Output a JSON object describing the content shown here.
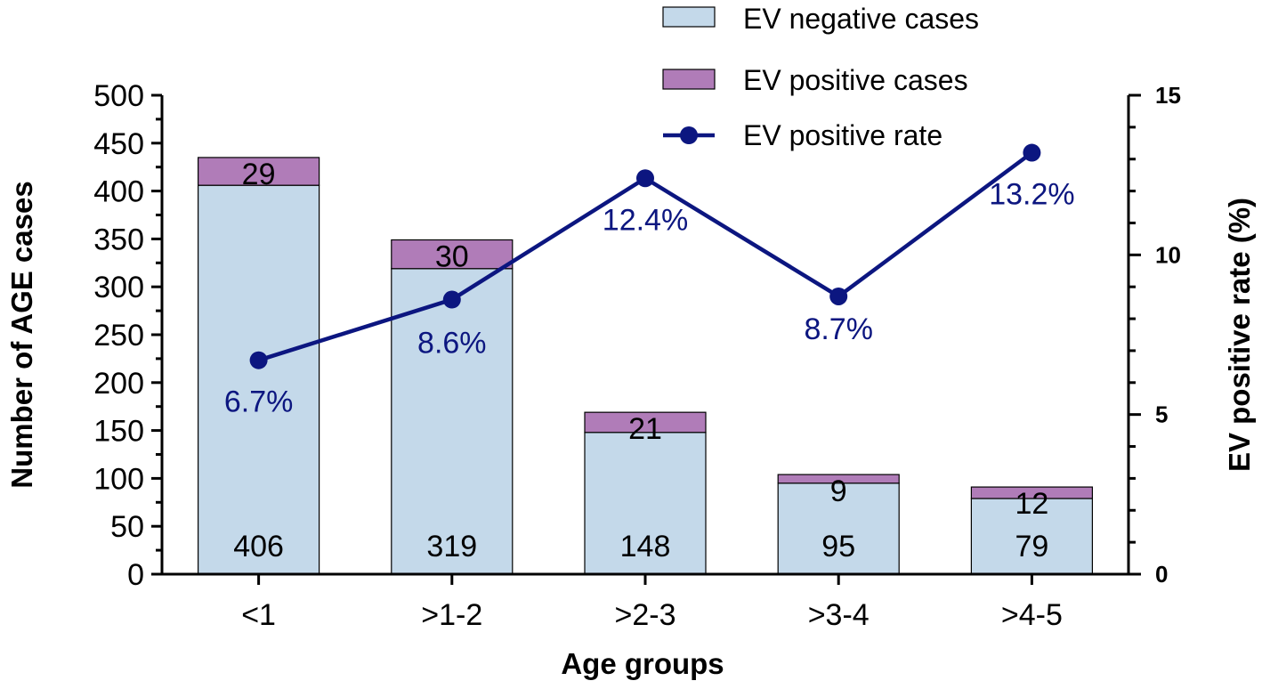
{
  "colors": {
    "negative_fill": "#c4d9ea",
    "positive_fill": "#b07cb8",
    "rate_line": "#0c1680",
    "axis": "#000000"
  },
  "chart_data": {
    "type": "bar",
    "stacked": true,
    "categories": [
      "<1",
      ">1-2",
      ">2-3",
      ">3-4",
      ">4-5"
    ],
    "series": [
      {
        "name": "EV negative cases",
        "values": [
          406,
          319,
          148,
          95,
          79
        ]
      },
      {
        "name": "EV positive cases",
        "values": [
          29,
          30,
          21,
          9,
          12
        ]
      }
    ],
    "line_series": {
      "name": "EV positive rate",
      "values": [
        6.7,
        8.6,
        12.4,
        8.7,
        13.2
      ],
      "labels": [
        "6.7%",
        "8.6%",
        "12.4%",
        "8.7%",
        "13.2%"
      ],
      "axis": "right"
    },
    "xlabel": "Age groups",
    "ylabel": "Number of AGE cases",
    "ylabel_right": "EV positive rate (%)",
    "ylim": [
      0,
      500
    ],
    "yticks": [
      0,
      50,
      100,
      150,
      200,
      250,
      300,
      350,
      400,
      450,
      500
    ],
    "ylim_right": [
      0,
      15
    ],
    "yticks_right": [
      0,
      5,
      10,
      15
    ],
    "legend": [
      "EV negative cases",
      "EV positive cases",
      "EV positive rate"
    ],
    "legend_position": "top-right"
  }
}
